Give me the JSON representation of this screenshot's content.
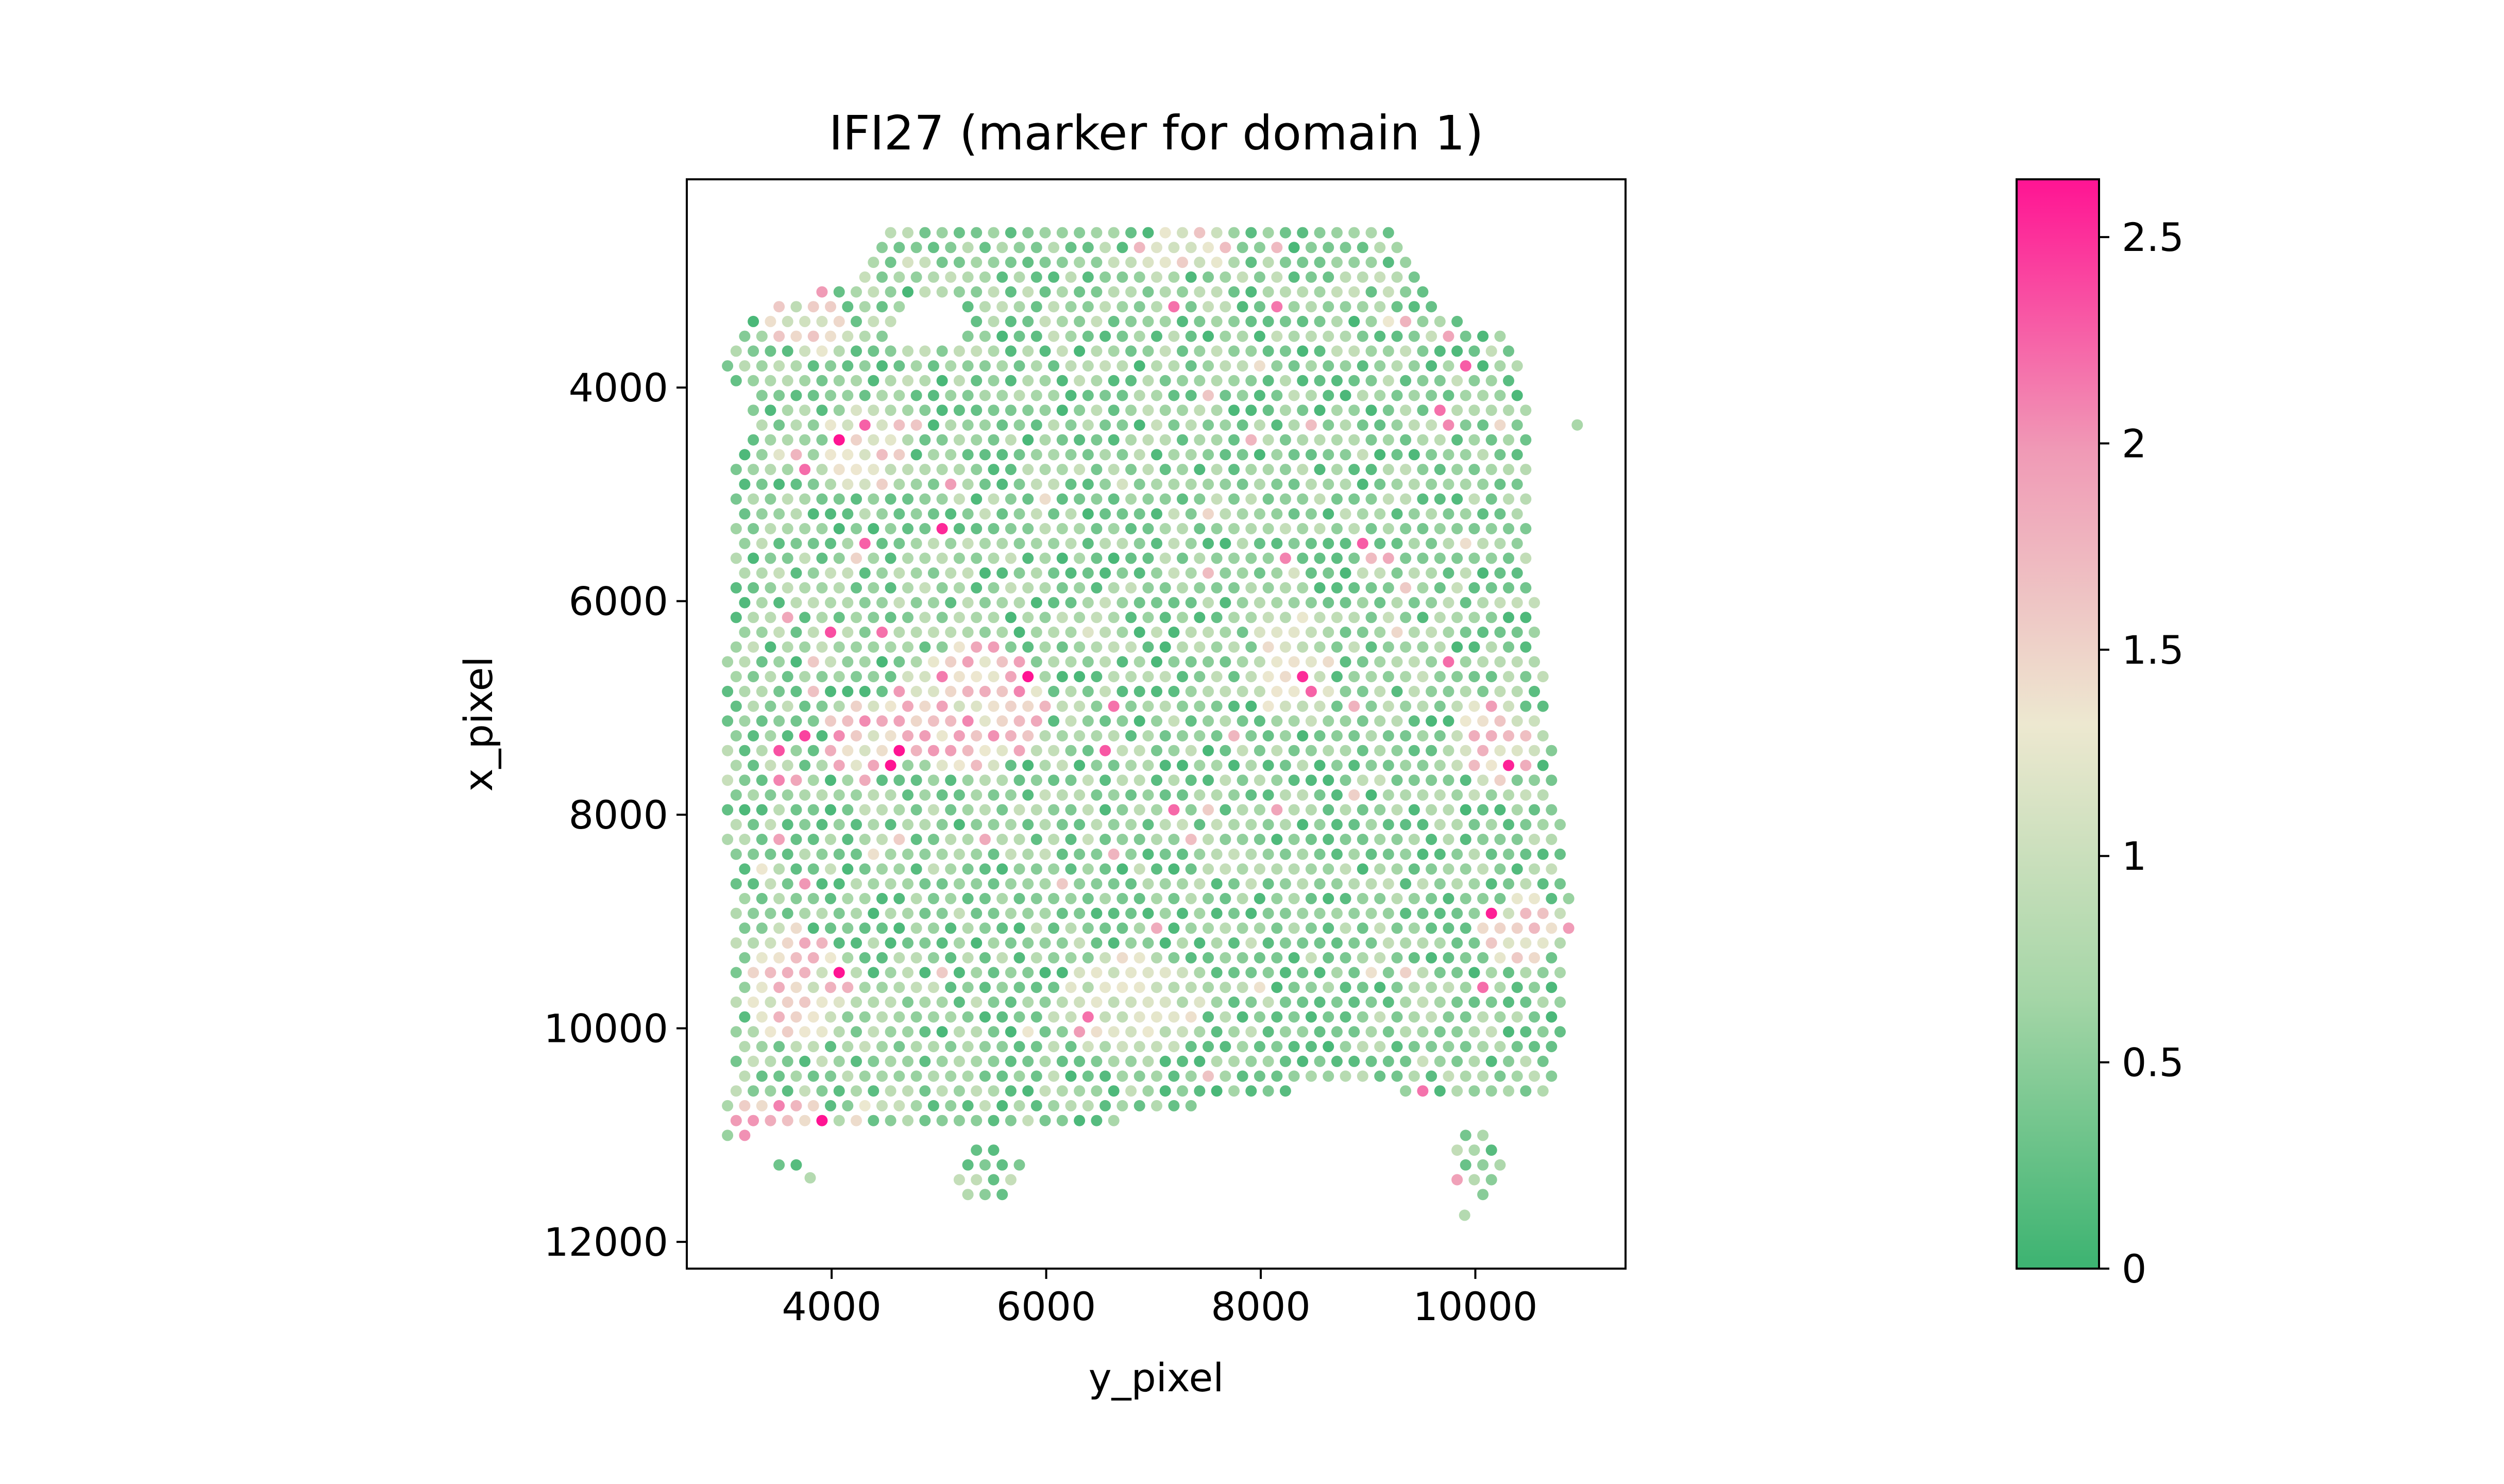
{
  "chart_data": {
    "type": "scatter",
    "title": "IFI27 (marker for domain 1)",
    "xlabel": "y_pixel",
    "ylabel": "x_pixel",
    "xlim": [
      2650,
      11400
    ],
    "ylim": [
      12250,
      2050
    ],
    "y_inverted": true,
    "xticks": [
      4000,
      6000,
      8000,
      10000
    ],
    "yticks": [
      4000,
      6000,
      8000,
      10000,
      12000
    ],
    "xtick_labels": [
      "4000",
      "6000",
      "8000",
      "10000"
    ],
    "ytick_labels": [
      "4000",
      "6000",
      "8000",
      "10000",
      "12000"
    ],
    "grid": false,
    "colorbar": {
      "min": 0,
      "max": 2.64,
      "ticks": [
        0,
        0.5,
        1,
        1.5,
        2,
        2.5
      ],
      "tick_labels": [
        "0",
        "0.5",
        "1",
        "1.5",
        "2",
        "2.5"
      ],
      "colors": [
        "#3cb371",
        "#a5d6a7",
        "#ede8d0",
        "#f09ab6",
        "#ff1493"
      ]
    },
    "spot_spacing": 160,
    "tissue_outline": [
      [
        4450,
        2550
      ],
      [
        9350,
        2550
      ],
      [
        9600,
        3200
      ],
      [
        10450,
        3600
      ],
      [
        10500,
        4700
      ],
      [
        10550,
        5800
      ],
      [
        10700,
        7300
      ],
      [
        10900,
        8900
      ],
      [
        10750,
        10600
      ],
      [
        9800,
        10700
      ],
      [
        9000,
        10500
      ],
      [
        7500,
        10700
      ],
      [
        6600,
        10900
      ],
      [
        4200,
        11000
      ],
      [
        3200,
        11000
      ],
      [
        3000,
        11100
      ],
      [
        3050,
        10200
      ],
      [
        3100,
        9000
      ],
      [
        2980,
        7800
      ],
      [
        3050,
        6000
      ],
      [
        3100,
        4700
      ],
      [
        3000,
        3700
      ],
      [
        3400,
        3200
      ],
      [
        4200,
        3000
      ]
    ],
    "tissue_extra_blobs": [
      {
        "cx": 5450,
        "cy": 11350,
        "rx": 320,
        "ry": 280
      },
      {
        "cx": 10050,
        "cy": 11250,
        "rx": 260,
        "ry": 340
      },
      {
        "cx": 3600,
        "cy": 11250,
        "rx": 200,
        "ry": 90
      }
    ],
    "tissue_holes": [
      {
        "cx": 4900,
        "cy": 3400,
        "rx": 350,
        "ry": 220
      },
      {
        "cx": 3100,
        "cy": 4300,
        "rx": 130,
        "ry": 350
      }
    ],
    "outlier_spots": [
      {
        "x": 10950,
        "y": 4350,
        "value": 0.7
      },
      {
        "x": 9900,
        "y": 11750,
        "value": 0.8
      },
      {
        "x": 3800,
        "y": 11400,
        "value": 0.8
      }
    ],
    "high_expression_regions": [
      {
        "cx": 3500,
        "cy": 10900,
        "rx": 450,
        "ry": 300,
        "value": 2.5
      },
      {
        "cx": 5300,
        "cy": 7000,
        "rx": 700,
        "ry": 600,
        "value": 1.9
      },
      {
        "cx": 4300,
        "cy": 7300,
        "rx": 350,
        "ry": 400,
        "value": 1.9
      },
      {
        "cx": 3700,
        "cy": 9600,
        "rx": 500,
        "ry": 550,
        "value": 1.7
      },
      {
        "cx": 4300,
        "cy": 4600,
        "rx": 400,
        "ry": 400,
        "value": 1.6
      },
      {
        "cx": 10200,
        "cy": 7300,
        "rx": 400,
        "ry": 400,
        "value": 1.7
      },
      {
        "cx": 10400,
        "cy": 9100,
        "rx": 350,
        "ry": 350,
        "value": 1.6
      },
      {
        "cx": 3800,
        "cy": 3400,
        "rx": 400,
        "ry": 300,
        "value": 1.5
      },
      {
        "cx": 7300,
        "cy": 2700,
        "rx": 500,
        "ry": 200,
        "value": 1.6
      },
      {
        "cx": 8300,
        "cy": 6600,
        "rx": 400,
        "ry": 500,
        "value": 1.3
      },
      {
        "cx": 6800,
        "cy": 9800,
        "rx": 700,
        "ry": 500,
        "value": 1.3
      }
    ],
    "base_value": 0.4,
    "value_noise": 0.9,
    "random_seed": 27
  }
}
